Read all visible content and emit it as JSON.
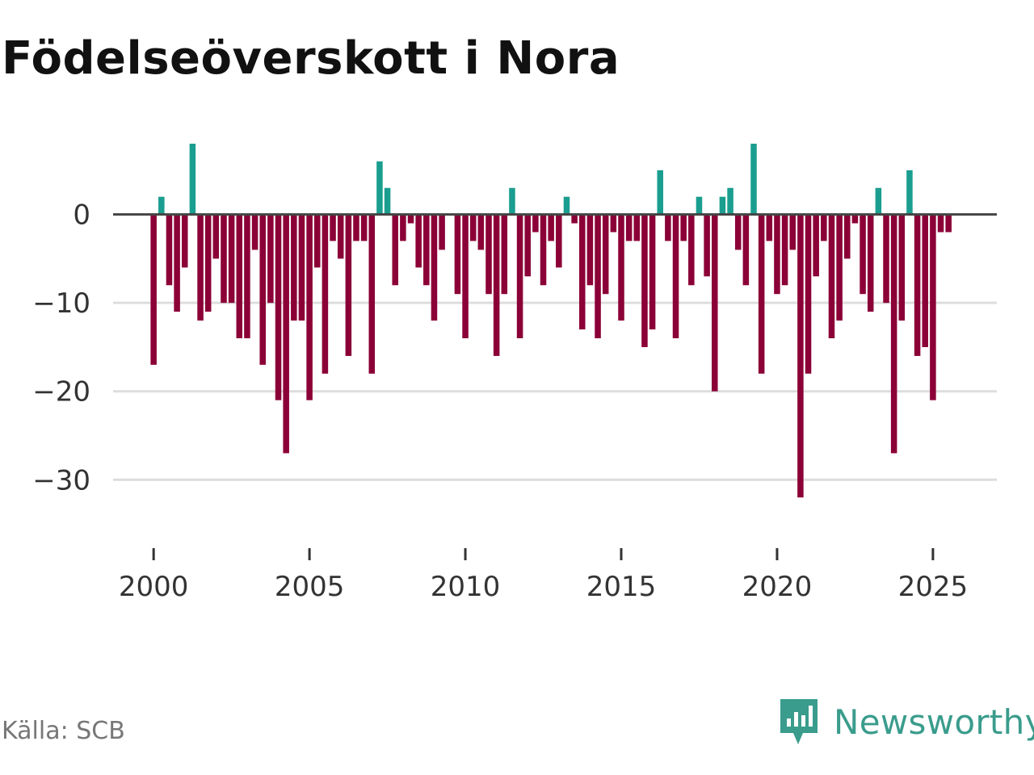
{
  "chart_data": {
    "type": "bar",
    "title": "Födelseöverskott i Nora",
    "xlabel": "",
    "ylabel": "",
    "x_start": 2000.0,
    "x_step": 0.25,
    "values": [
      -17,
      2,
      -8,
      -11,
      -6,
      8,
      -12,
      -11,
      -5,
      -10,
      -10,
      -14,
      -14,
      -4,
      -17,
      -10,
      -21,
      -27,
      -12,
      -12,
      -21,
      -6,
      -18,
      -3,
      -5,
      -16,
      -3,
      -3,
      -18,
      6,
      3,
      -8,
      -3,
      -1,
      -6,
      -8,
      -12,
      -4,
      0,
      -9,
      -14,
      -3,
      -4,
      -9,
      -16,
      -9,
      3,
      -14,
      -7,
      -2,
      -8,
      -3,
      -6,
      2,
      -1,
      -13,
      -8,
      -14,
      -9,
      -2,
      -12,
      -3,
      -3,
      -15,
      -13,
      5,
      -3,
      -14,
      -3,
      -8,
      2,
      -7,
      -20,
      2,
      3,
      -4,
      -8,
      8,
      -18,
      -3,
      -9,
      -8,
      -4,
      -32,
      -18,
      -7,
      -3,
      -14,
      -12,
      -5,
      -1,
      -9,
      -11,
      3,
      -10,
      -27,
      -12,
      5,
      -16,
      -15,
      -21,
      -2,
      -2
    ],
    "ylim": [
      -36,
      8
    ],
    "xlim": [
      1998.7,
      2027.05
    ],
    "yticks": [
      0,
      -10,
      -20,
      -30
    ],
    "ytick_labels": [
      "0",
      "−10",
      "−20",
      "−30"
    ],
    "xticks": [
      2000,
      2005,
      2010,
      2015,
      2020,
      2025
    ],
    "xtick_labels": [
      "2000",
      "2005",
      "2010",
      "2015",
      "2020",
      "2025"
    ],
    "grid": true,
    "colors": {
      "positive": "#1a9e8f",
      "negative": "#8b0037",
      "zero_line": "#444444",
      "grid": "#dddddd",
      "axis_tick": "#333333"
    }
  },
  "footer": {
    "source": "Källa: SCB",
    "brand": "Newsworthy"
  }
}
